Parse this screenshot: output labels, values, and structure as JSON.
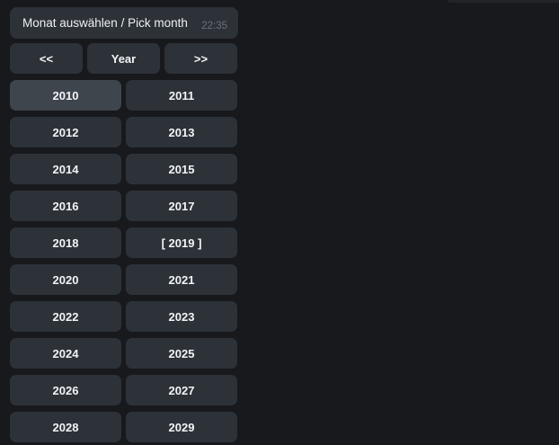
{
  "message": {
    "text": "Monat auswählen / Pick month",
    "time": "22:35"
  },
  "keyboard": {
    "nav": [
      {
        "id": "prev-decade",
        "label": "<<"
      },
      {
        "id": "year-mode",
        "label": "Year"
      },
      {
        "id": "next-decade",
        "label": ">>"
      }
    ],
    "rows": [
      [
        {
          "year": "2010",
          "label": "2010",
          "highlighted": true
        },
        {
          "year": "2011",
          "label": "2011"
        }
      ],
      [
        {
          "year": "2012",
          "label": "2012"
        },
        {
          "year": "2013",
          "label": "2013"
        }
      ],
      [
        {
          "year": "2014",
          "label": "2014"
        },
        {
          "year": "2015",
          "label": "2015"
        }
      ],
      [
        {
          "year": "2016",
          "label": "2016"
        },
        {
          "year": "2017",
          "label": "2017"
        }
      ],
      [
        {
          "year": "2018",
          "label": "2018"
        },
        {
          "year": "2019",
          "label": "[ 2019 ]",
          "selected": true
        }
      ],
      [
        {
          "year": "2020",
          "label": "2020"
        },
        {
          "year": "2021",
          "label": "2021"
        }
      ],
      [
        {
          "year": "2022",
          "label": "2022"
        },
        {
          "year": "2023",
          "label": "2023"
        }
      ],
      [
        {
          "year": "2024",
          "label": "2024"
        },
        {
          "year": "2025",
          "label": "2025"
        }
      ],
      [
        {
          "year": "2026",
          "label": "2026"
        },
        {
          "year": "2027",
          "label": "2027"
        }
      ],
      [
        {
          "year": "2028",
          "label": "2028"
        },
        {
          "year": "2029",
          "label": "2029"
        }
      ]
    ]
  },
  "colors": {
    "background": "#17191d",
    "bubble": "#2d3239",
    "button": "#2d3239",
    "button_highlight": "#3f454d",
    "button_text": "#f2f4f6",
    "message_text": "#eef1f3",
    "timestamp": "#6a7076",
    "previous_bubble_edge": "#212429"
  }
}
